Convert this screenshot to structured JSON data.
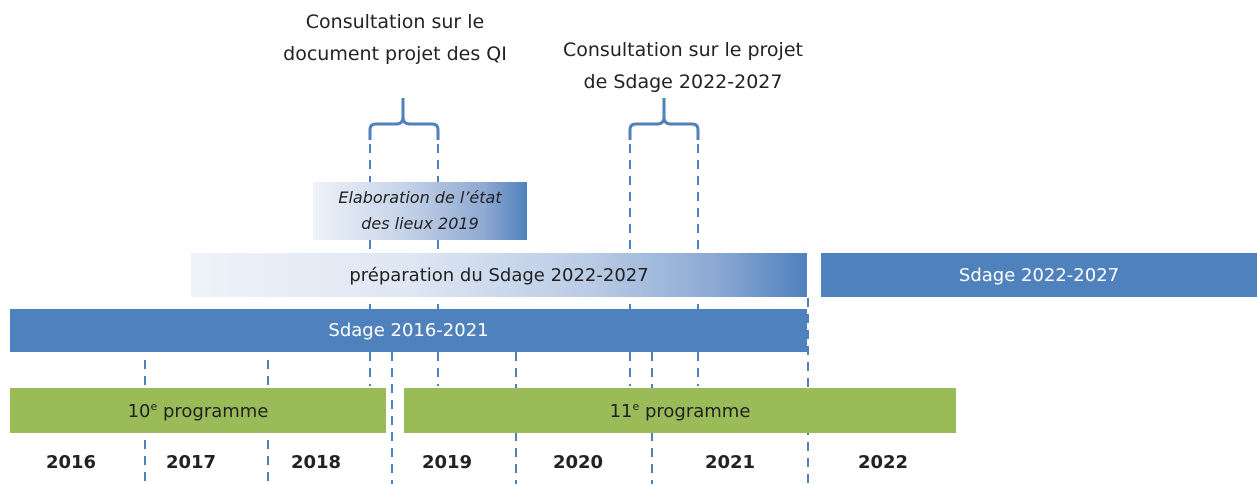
{
  "consultations": [
    {
      "lines": [
        "Consultation sur le",
        "document projet des QI"
      ]
    },
    {
      "lines": [
        "Consultation sur le projet",
        "de Sdage 2022-2027"
      ]
    }
  ],
  "state_of_places": {
    "lines": [
      "Elaboration de l’état",
      "des lieux  2019"
    ]
  },
  "bars": {
    "preparation": "préparation du Sdage 2022-2027",
    "sdage_next": "Sdage 2022-2027",
    "sdage_current": "Sdage 2016-2021"
  },
  "programmes": [
    {
      "number": "10",
      "sup": "e",
      "rest": " programme"
    },
    {
      "number": "11",
      "sup": "e",
      "rest": " programme"
    }
  ],
  "years": [
    "2016",
    "2017",
    "2018",
    "2019",
    "2020",
    "2021",
    "2022"
  ]
}
